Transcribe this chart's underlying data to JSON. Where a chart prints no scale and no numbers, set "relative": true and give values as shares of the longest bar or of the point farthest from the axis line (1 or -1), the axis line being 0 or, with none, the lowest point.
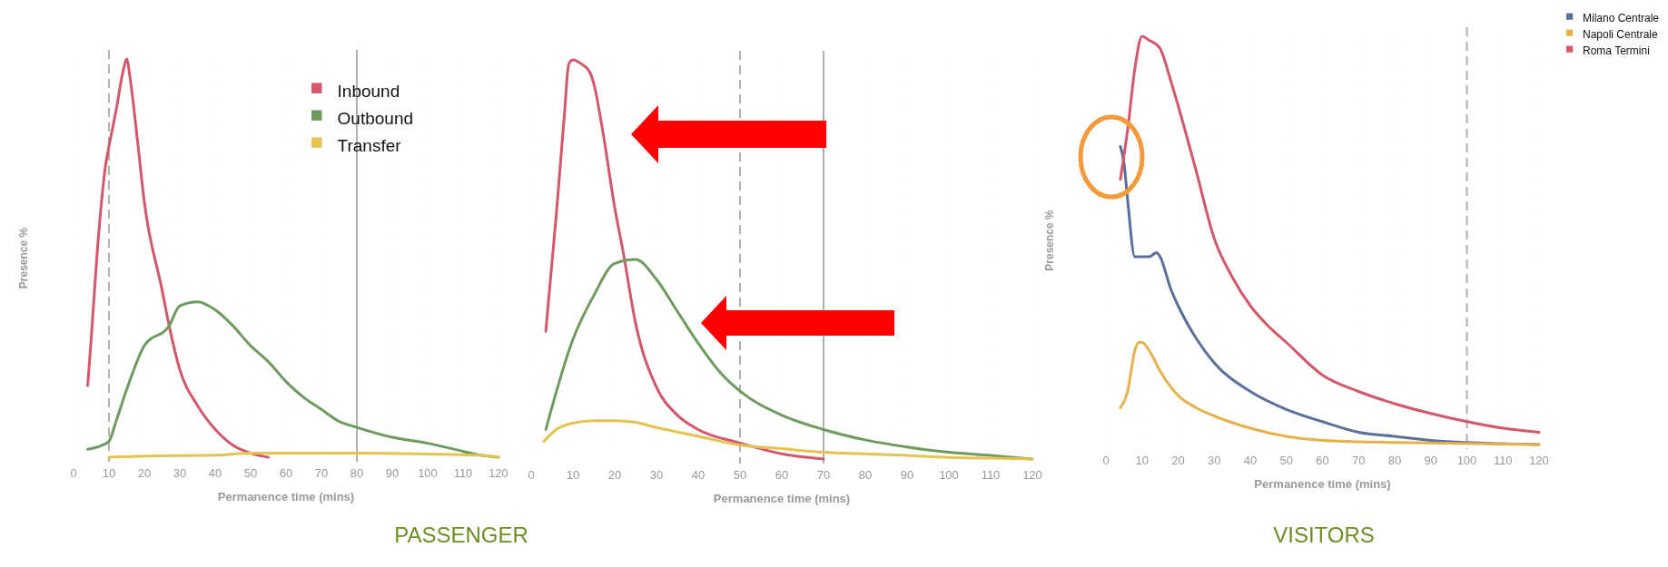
{
  "chart_data": [
    {
      "type": "line",
      "relative": true,
      "xlabel": "Permanence time (mins)",
      "ylabel": "Presence %",
      "xlim": [
        0,
        120
      ],
      "xticks": [
        0,
        10,
        20,
        30,
        40,
        50,
        60,
        70,
        80,
        90,
        100,
        110,
        120
      ],
      "legend": "top right",
      "grid": true,
      "annotations": [
        "PASSENGER"
      ],
      "ref_lines": [
        {
          "axis": "x",
          "value": 10,
          "line_style": "dashed",
          "color": "#b0b0b0"
        },
        {
          "axis": "x",
          "value": 80,
          "line_style": "solid",
          "color": "#b0b0b0"
        }
      ],
      "series": [
        {
          "name": "Inbound",
          "color": "#d4566a",
          "x": [
            4,
            5,
            7,
            9,
            10,
            12,
            14,
            15,
            16,
            18,
            20,
            25,
            27,
            30,
            35,
            40,
            45,
            50,
            55
          ],
          "values": [
            0.18,
            0.3,
            0.55,
            0.73,
            0.78,
            0.87,
            0.97,
            1,
            0.95,
            0.8,
            0.64,
            0.42,
            0.33,
            0.22,
            0.13,
            0.07,
            0.03,
            0.01,
            0
          ]
        },
        {
          "name": "Outbound",
          "color": "#6e9a5e",
          "x": [
            4,
            8,
            10,
            12,
            15,
            20,
            27,
            30,
            35,
            40,
            45,
            50,
            55,
            60,
            65,
            70,
            75,
            80,
            90,
            100,
            110,
            115,
            120
          ],
          "values": [
            0.02,
            0.03,
            0.04,
            0.09,
            0.17,
            0.28,
            0.33,
            0.38,
            0.39,
            0.37,
            0.33,
            0.28,
            0.24,
            0.19,
            0.15,
            0.12,
            0.09,
            0.075,
            0.05,
            0.035,
            0.015,
            0.005,
            0
          ]
        },
        {
          "name": "Transfer",
          "color": "#e6c24f",
          "x": [
            10,
            20,
            40,
            50,
            60,
            80,
            100,
            115,
            120
          ],
          "values": [
            0,
            0.003,
            0.005,
            0.01,
            0.01,
            0.01,
            0.008,
            0.005,
            0
          ]
        }
      ]
    },
    {
      "type": "line",
      "relative": true,
      "xlabel": "Permanence time (mins)",
      "xlim": [
        0,
        120
      ],
      "xticks": [
        0,
        10,
        20,
        30,
        40,
        50,
        60,
        70,
        80,
        90,
        100,
        110,
        120
      ],
      "grid": true,
      "ref_lines": [
        {
          "axis": "x",
          "value": 50,
          "line_style": "dashed",
          "color": "#b0b0b0"
        },
        {
          "axis": "x",
          "value": 70,
          "line_style": "solid",
          "color": "#b0b0b0"
        }
      ],
      "series": [
        {
          "color": "#d4566a",
          "x": [
            3.5,
            6,
            8,
            9,
            10,
            12,
            14,
            15,
            17,
            20,
            22,
            25,
            30,
            35,
            40,
            50,
            60,
            70
          ],
          "values": [
            0.32,
            0.61,
            0.87,
            0.99,
            1,
            0.99,
            0.97,
            0.94,
            0.83,
            0.63,
            0.52,
            0.34,
            0.18,
            0.11,
            0.074,
            0.04,
            0.013,
            0
          ]
        },
        {
          "color": "#6e9a5e",
          "x": [
            3.5,
            10,
            15,
            20,
            25,
            30,
            35,
            40,
            45,
            50,
            60,
            70,
            80,
            90,
            100,
            110,
            120
          ],
          "values": [
            0.074,
            0.3,
            0.41,
            0.49,
            0.5,
            0.45,
            0.37,
            0.29,
            0.22,
            0.17,
            0.11,
            0.074,
            0.048,
            0.03,
            0.017,
            0.009,
            0
          ]
        },
        {
          "color": "#e6c24f",
          "x": [
            3,
            6,
            10,
            15,
            20,
            25,
            30,
            40,
            50,
            60,
            70,
            80,
            90,
            100,
            110,
            120
          ],
          "values": [
            0.044,
            0.074,
            0.09,
            0.096,
            0.096,
            0.092,
            0.079,
            0.057,
            0.035,
            0.026,
            0.017,
            0.013,
            0.009,
            0.004,
            0.002,
            0
          ]
        }
      ]
    },
    {
      "type": "line",
      "relative": true,
      "xlabel": "Permanence time (mins)",
      "ylabel": "Presence %",
      "xlim": [
        0,
        120
      ],
      "xticks": [
        0,
        10,
        20,
        30,
        40,
        50,
        60,
        70,
        80,
        90,
        100,
        110,
        120
      ],
      "legend": "right",
      "grid": true,
      "annotations": [
        "VISITORS"
      ],
      "ref_lines": [
        {
          "axis": "x",
          "value": 100,
          "line_style": "dashed",
          "color": "#b0b0b0"
        }
      ],
      "series": [
        {
          "name": "Milano Centrale",
          "color": "#5a6f9a",
          "x": [
            4,
            5,
            6,
            8,
            10,
            12,
            14,
            15,
            18,
            20,
            25,
            30,
            40,
            50,
            60,
            70,
            80,
            90,
            100,
            120
          ],
          "values": [
            0.73,
            0.69,
            0.6,
            0.46,
            0.46,
            0.46,
            0.47,
            0.46,
            0.38,
            0.34,
            0.26,
            0.2,
            0.13,
            0.086,
            0.056,
            0.03,
            0.02,
            0.01,
            0.005,
            0
          ]
        },
        {
          "name": "Napoli Centrale",
          "color": "#e8b04a",
          "x": [
            4,
            6,
            8,
            9,
            10,
            12,
            15,
            20,
            25,
            30,
            40,
            50,
            60,
            80,
            120
          ],
          "values": [
            0.09,
            0.13,
            0.23,
            0.25,
            0.25,
            0.23,
            0.18,
            0.12,
            0.09,
            0.07,
            0.04,
            0.02,
            0.01,
            0.005,
            0
          ]
        },
        {
          "name": "Roma Termini",
          "color": "#d4566a",
          "x": [
            4,
            6,
            8,
            10,
            12,
            14,
            15,
            18,
            20,
            25,
            30,
            35,
            40,
            45,
            50,
            60,
            70,
            80,
            90,
            100,
            110,
            120
          ],
          "values": [
            0.65,
            0.77,
            0.92,
            1,
            0.99,
            0.98,
            0.97,
            0.89,
            0.83,
            0.67,
            0.505,
            0.41,
            0.34,
            0.29,
            0.25,
            0.17,
            0.13,
            0.1,
            0.076,
            0.056,
            0.04,
            0.03
          ]
        }
      ]
    }
  ]
}
